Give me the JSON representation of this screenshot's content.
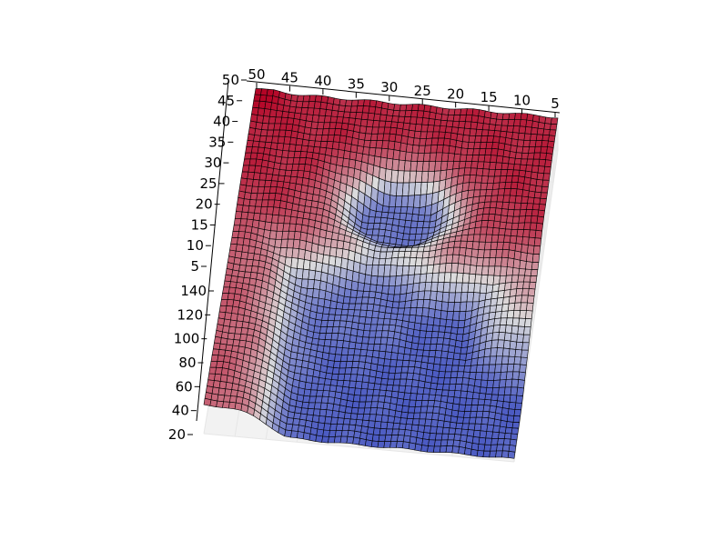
{
  "chart_data": {
    "type": "surface3d",
    "colormap": "coolwarm",
    "colors": {
      "low": "#3b4cc0",
      "mid": "#dddddd",
      "high": "#b40426",
      "edge": "#000000",
      "pane": "#f2f2f2",
      "grid": "#e6e6e6"
    },
    "grid_visible": true,
    "x_axis": {
      "ticks": [
        50,
        45,
        40,
        35,
        30,
        25,
        20,
        15,
        10,
        5
      ],
      "range": [
        0,
        52
      ]
    },
    "y_axis": {
      "ticks": [
        5,
        10,
        15,
        20,
        25,
        30,
        35,
        40,
        45,
        50
      ],
      "range": [
        0,
        52
      ]
    },
    "z_axis": {
      "ticks": [
        20,
        40,
        60,
        80,
        100,
        120,
        140
      ],
      "range": [
        20,
        150
      ]
    },
    "grid_size": [
      50,
      50
    ],
    "surface_description_values": {
      "base_level": 30,
      "ridge_levels": [
        {
          "region": "far-row",
          "value": 140
        },
        {
          "region": "left-columns",
          "value": 125
        },
        {
          "region": "right-columns",
          "value": 120
        },
        {
          "region": "corner-peak",
          "value": 150
        }
      ],
      "depressions": [
        {
          "region": "upper-hole",
          "value": 40
        },
        {
          "region": "lower-hole",
          "value": 40
        },
        {
          "region": "center-bridge",
          "value": 75
        }
      ]
    }
  }
}
